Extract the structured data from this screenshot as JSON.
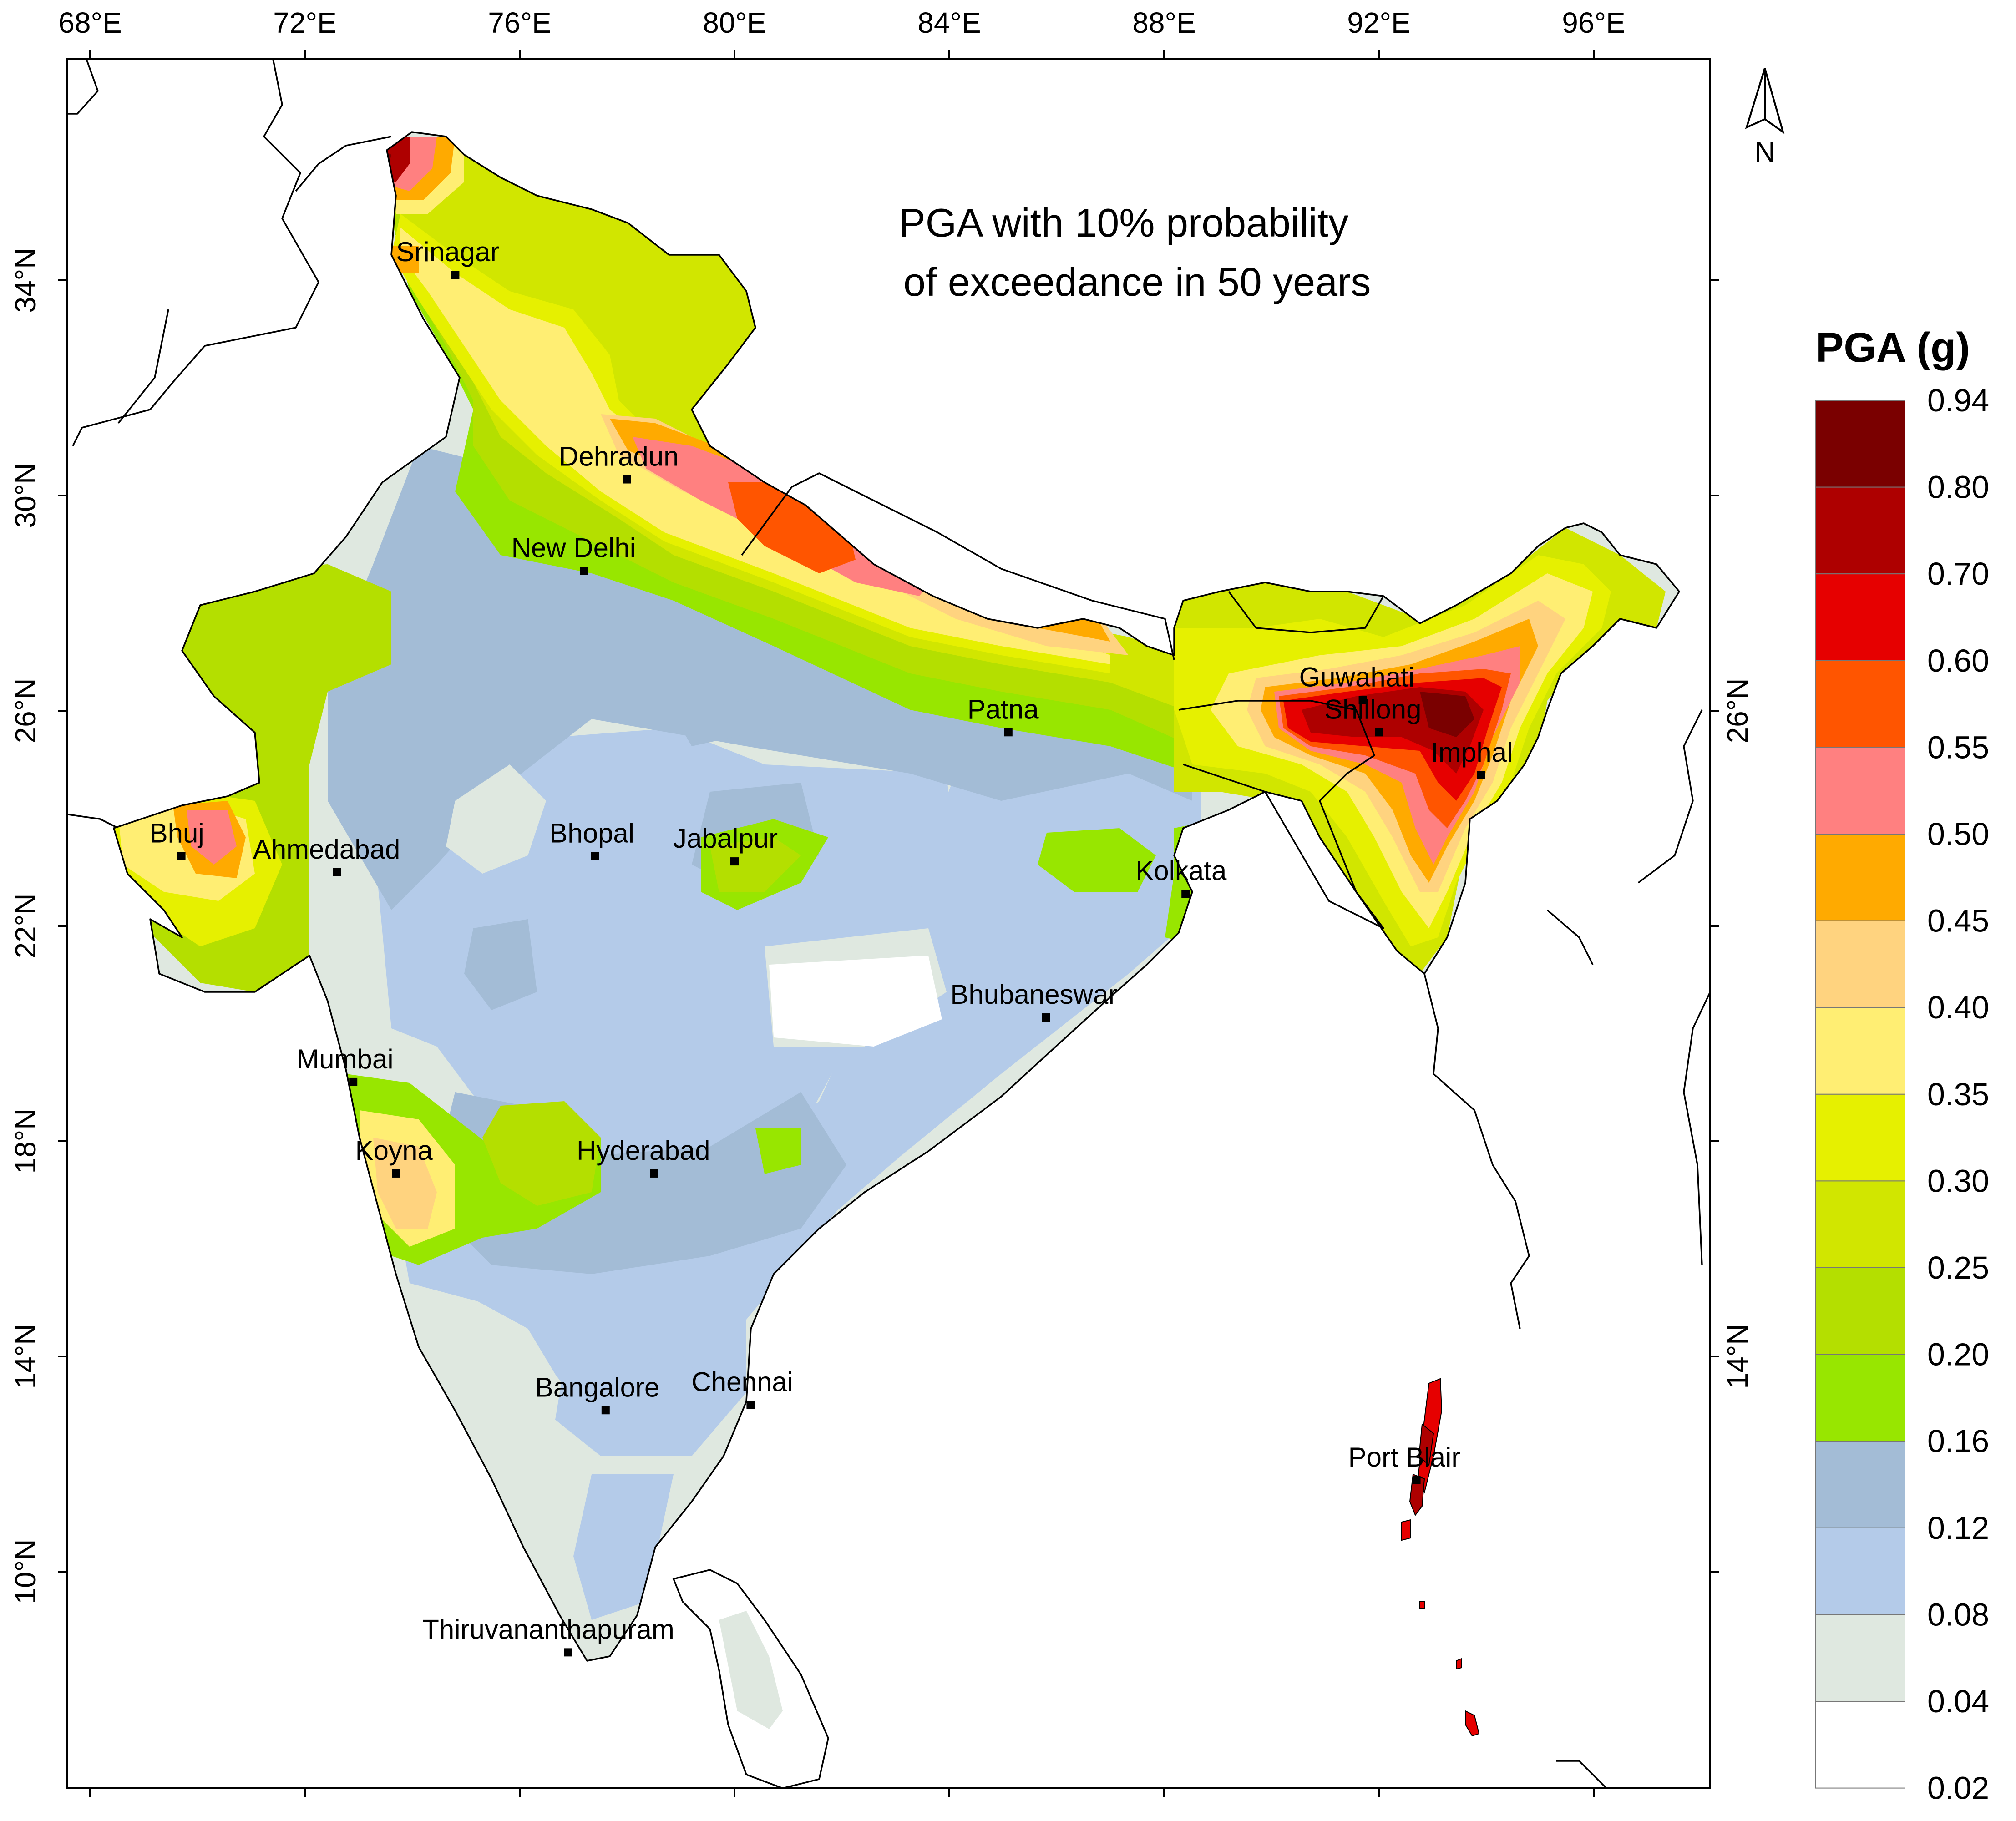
{
  "map": {
    "title_line1": "PGA with 10% probability",
    "title_line2": "of exceedance in 50 years",
    "north_label": "N",
    "lon_ticks": [
      {
        "value": 68,
        "label": "68°E"
      },
      {
        "value": 72,
        "label": "72°E"
      },
      {
        "value": 76,
        "label": "76°E"
      },
      {
        "value": 80,
        "label": "80°E"
      },
      {
        "value": 84,
        "label": "84°E"
      },
      {
        "value": 88,
        "label": "88°E"
      },
      {
        "value": 92,
        "label": "92°E"
      },
      {
        "value": 96,
        "label": "96°E"
      }
    ],
    "lat_ticks_left": [
      {
        "value": 34,
        "label": "34°N"
      },
      {
        "value": 30,
        "label": "30°N"
      },
      {
        "value": 26,
        "label": "26°N"
      },
      {
        "value": 22,
        "label": "22°N"
      },
      {
        "value": 18,
        "label": "18°N"
      },
      {
        "value": 14,
        "label": "14°N"
      },
      {
        "value": 10,
        "label": "10°N"
      }
    ],
    "lat_ticks_right": [
      {
        "value": 26,
        "label": "26°N"
      },
      {
        "value": 14,
        "label": "14°N"
      }
    ],
    "cities": [
      {
        "name": "Srinagar",
        "lon": 74.8,
        "lat": 34.1
      },
      {
        "name": "Dehradun",
        "lon": 78.0,
        "lat": 30.3
      },
      {
        "name": "New Delhi",
        "lon": 77.2,
        "lat": 28.6
      },
      {
        "name": "Patna",
        "lon": 85.1,
        "lat": 25.6
      },
      {
        "name": "Guwahati",
        "lon": 91.7,
        "lat": 26.2
      },
      {
        "name": "Shillong",
        "lon": 92.0,
        "lat": 25.6
      },
      {
        "name": "Imphal",
        "lon": 93.9,
        "lat": 24.8
      },
      {
        "name": "Bhuj",
        "lon": 69.7,
        "lat": 23.3
      },
      {
        "name": "Ahmedabad",
        "lon": 72.6,
        "lat": 23.0
      },
      {
        "name": "Bhopal",
        "lon": 77.4,
        "lat": 23.3
      },
      {
        "name": "Jabalpur",
        "lon": 80.0,
        "lat": 23.2
      },
      {
        "name": "Kolkata",
        "lon": 88.4,
        "lat": 22.6
      },
      {
        "name": "Bhubaneswar",
        "lon": 85.8,
        "lat": 20.3
      },
      {
        "name": "Mumbai",
        "lon": 72.9,
        "lat": 19.1
      },
      {
        "name": "Koyna",
        "lon": 73.7,
        "lat": 17.4
      },
      {
        "name": "Hyderabad",
        "lon": 78.5,
        "lat": 17.4
      },
      {
        "name": "Bangalore",
        "lon": 77.6,
        "lat": 13.0
      },
      {
        "name": "Chennai",
        "lon": 80.3,
        "lat": 13.1
      },
      {
        "name": "Port Blair",
        "lon": 92.7,
        "lat": 11.7
      },
      {
        "name": "Thiruvananthapuram",
        "lon": 76.9,
        "lat": 8.5
      }
    ]
  },
  "legend": {
    "title": "PGA (g)",
    "classes": [
      {
        "color": "#7a0000"
      },
      {
        "color": "#ae0000"
      },
      {
        "color": "#e60000"
      },
      {
        "color": "#ff5500"
      },
      {
        "color": "#ff8080"
      },
      {
        "color": "#ffaa00"
      },
      {
        "color": "#ffd37f"
      },
      {
        "color": "#ffee73"
      },
      {
        "color": "#e6f000"
      },
      {
        "color": "#d1e600"
      },
      {
        "color": "#b4df00"
      },
      {
        "color": "#98e600"
      },
      {
        "color": "#a3bcd6"
      },
      {
        "color": "#b4cbe9"
      },
      {
        "color": "#dfe8e0"
      },
      {
        "color": "#ffffff"
      }
    ],
    "breaks": [
      "0.94",
      "0.80",
      "0.70",
      "0.60",
      "0.55",
      "0.50",
      "0.45",
      "0.40",
      "0.35",
      "0.30",
      "0.25",
      "0.20",
      "0.16",
      "0.12",
      "0.08",
      "0.04",
      "0.02"
    ]
  }
}
